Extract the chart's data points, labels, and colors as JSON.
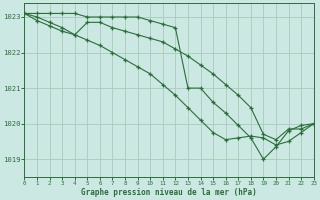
{
  "title": "Graphe pression niveau de la mer (hPa)",
  "bg_color": "#cce8e2",
  "grid_color": "#aaccbb",
  "line_color": "#2a6e3a",
  "xlim": [
    0,
    23
  ],
  "ylim": [
    1018.5,
    1023.4
  ],
  "yticks": [
    1019,
    1020,
    1021,
    1022,
    1023
  ],
  "xticks": [
    0,
    1,
    2,
    3,
    4,
    5,
    6,
    7,
    8,
    9,
    10,
    11,
    12,
    13,
    14,
    15,
    16,
    17,
    18,
    19,
    20,
    21,
    22,
    23
  ],
  "s1": [
    1023.1,
    1023.1,
    1023.1,
    1023.1,
    1023.1,
    1023.0,
    1023.0,
    1023.0,
    1023.0,
    1023.0,
    1022.9,
    1022.8,
    1022.7,
    1021.0,
    1021.0,
    1020.6,
    1020.3,
    1019.95,
    1019.6,
    1019.0,
    1019.35,
    1019.8,
    1019.95,
    1020.0
  ],
  "s2": [
    1023.1,
    1022.9,
    1022.75,
    1022.6,
    1022.5,
    1022.85,
    1022.85,
    1022.7,
    1022.6,
    1022.5,
    1022.4,
    1022.3,
    1022.1,
    1021.9,
    1021.65,
    1021.4,
    1021.1,
    1020.8,
    1020.45,
    1019.7,
    1019.55,
    1019.85,
    1019.85,
    1020.0
  ],
  "s3": [
    1023.1,
    1023.0,
    1022.85,
    1022.7,
    1022.5,
    1022.35,
    1022.2,
    1022.0,
    1021.8,
    1021.6,
    1021.4,
    1021.1,
    1020.8,
    1020.45,
    1020.1,
    1019.75,
    1019.55,
    1019.6,
    1019.65,
    1019.6,
    1019.4,
    1019.5,
    1019.75,
    1020.0
  ]
}
